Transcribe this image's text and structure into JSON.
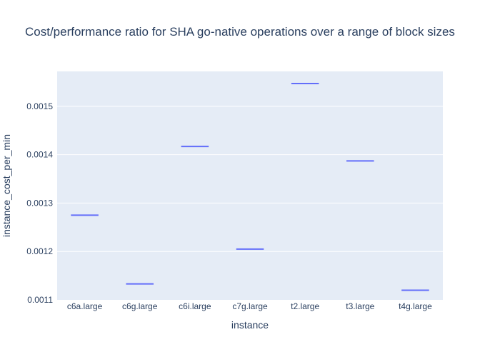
{
  "chart_data": {
    "type": "box",
    "title": "Cost/performance ratio for SHA go-native operations over a range of block sizes",
    "xlabel": "instance",
    "ylabel": "instance_cost_per_min",
    "categories": [
      "c6a.large",
      "c6g.large",
      "c6i.large",
      "c7g.large",
      "t2.large",
      "t3.large",
      "t4g.large"
    ],
    "values": [
      0.001275,
      0.001133,
      0.001417,
      0.001205,
      0.001547,
      0.001387,
      0.00112
    ],
    "ylim": [
      0.0011,
      0.001572
    ],
    "yticks": [
      0.0011,
      0.0012,
      0.0013,
      0.0014,
      0.0015
    ],
    "ytick_labels": [
      "0.0011",
      "0.0012",
      "0.0013",
      "0.0014",
      "0.0015"
    ],
    "grid": true,
    "colors": {
      "plot_bg": "#e5ecf6",
      "grid": "#ffffff",
      "series": "#636efa",
      "text": "#2a3f5f"
    }
  }
}
